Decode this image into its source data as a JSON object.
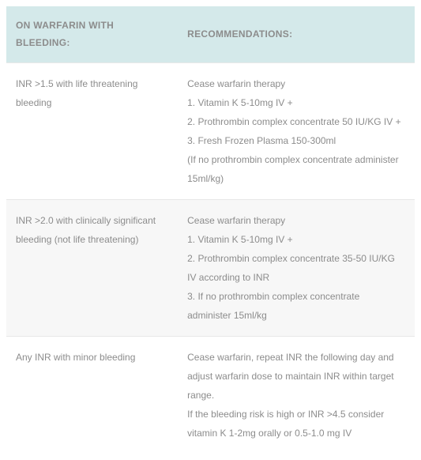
{
  "table": {
    "columns": [
      "ON WARFARIN WITH BLEEDING:",
      "RECOMMENDATIONS:"
    ],
    "rows": [
      {
        "condition": "INR >1.5 with life threatening bleeding",
        "recommendation": "Cease warfarin therapy\n1. Vitamin K 5-10mg IV +\n2. Prothrombin complex concentrate 50 IU/KG IV +\n3. Fresh Frozen Plasma 150-300ml\n(If no prothrombin complex concentrate administer 15ml/kg)"
      },
      {
        "condition": "INR >2.0 with clinically significant bleeding (not life threatening)",
        "recommendation": "Cease warfarin therapy\n1. Vitamin K 5-10mg IV +\n2. Prothrombin complex concentrate 35-50 IU/KG IV according to INR\n3. If no prothrombin complex concentrate administer 15ml/kg"
      },
      {
        "condition": "Any INR with minor bleeding",
        "recommendation": "Cease warfarin, repeat INR the following day and adjust warfarin dose to maintain INR within target range.\nIf the bleeding risk is high or INR >4.5 consider vitamin K 1-2mg orally or 0.5-1.0 mg IV"
      }
    ],
    "header_bg": "#d4e9ea",
    "text_color": "#8c8c8c",
    "alt_row_bg": "#f7f7f7",
    "border_color": "#e8e8e8",
    "font_size": 12,
    "col_widths": [
      "42%",
      "58%"
    ]
  }
}
